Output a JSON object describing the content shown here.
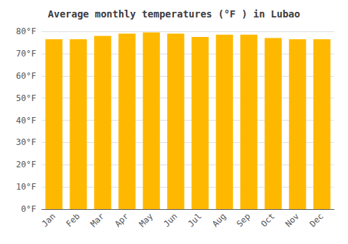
{
  "chart_data": {
    "type": "bar",
    "title": "Average monthly temperatures (°F ) in Lubao",
    "categories": [
      "Jan",
      "Feb",
      "Mar",
      "Apr",
      "May",
      "Jun",
      "Jul",
      "Aug",
      "Sep",
      "Oct",
      "Nov",
      "Dec"
    ],
    "values": [
      76.5,
      76.5,
      78.0,
      79.0,
      79.5,
      79.0,
      77.5,
      78.5,
      78.5,
      77.0,
      76.5,
      76.5
    ],
    "color": "#FFB800",
    "ylim": [
      0,
      80
    ],
    "yticks": [
      {
        "value": 0,
        "label": "0°F"
      },
      {
        "value": 10,
        "label": "10°F"
      },
      {
        "value": 20,
        "label": "20°F"
      },
      {
        "value": 30,
        "label": "30°F"
      },
      {
        "value": 40,
        "label": "40°F"
      },
      {
        "value": 50,
        "label": "50°F"
      },
      {
        "value": 60,
        "label": "60°F"
      },
      {
        "value": 70,
        "label": "70°F"
      },
      {
        "value": 80,
        "label": "80°F"
      }
    ],
    "grid": true
  }
}
